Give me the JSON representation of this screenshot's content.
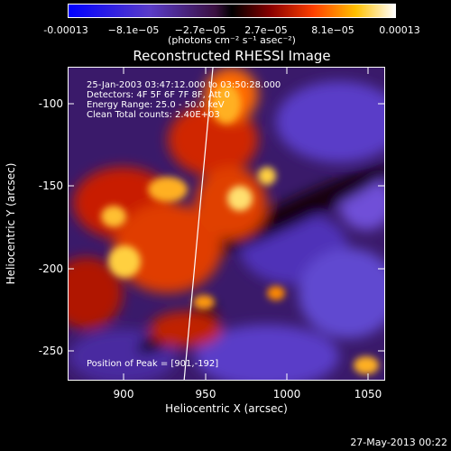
{
  "colorbar": {
    "ticks": [
      "-0.00013",
      "−8.1e−05",
      "−2.7e−05",
      "2.7e−05",
      "8.1e−05",
      "0.00013"
    ],
    "units": "(photons cm⁻² s⁻¹ asec⁻²)"
  },
  "plot": {
    "title": "Reconstructed RHESSI Image",
    "annotations": {
      "time": "25-Jan-2003 03:47:12.000 to 03:50:28.000",
      "detectors": "Detectors: 4F 5F 6F 7F 8F, Att 0",
      "energy": "Energy Range: 25.0 - 50.0 keV",
      "clean": "Clean      Total counts: 2.40E+03",
      "peak": "Position of Peak = [901,-192]"
    },
    "xlabel": "Heliocentric X (arcsec)",
    "ylabel": "Heliocentric Y (arcsec)",
    "xticks": [
      "900",
      "950",
      "1000",
      "1050"
    ],
    "yticks": [
      "-100",
      "-150",
      "-200",
      "-250"
    ]
  },
  "footer": {
    "timestamp": "27-May-2013 00:22"
  }
}
